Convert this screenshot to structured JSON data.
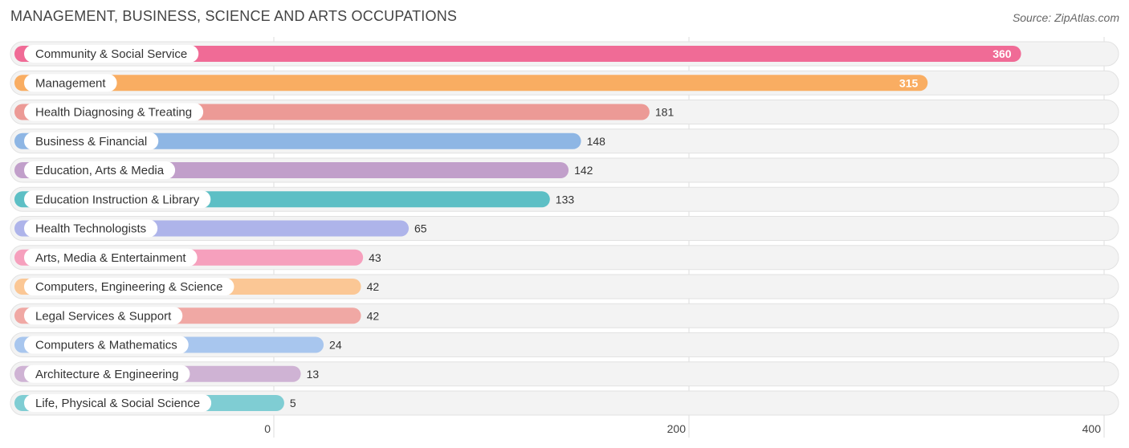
{
  "chart_data": {
    "type": "bar",
    "orientation": "horizontal",
    "title": "MANAGEMENT, BUSINESS, SCIENCE AND ARTS OCCUPATIONS",
    "source": "Source: ZipAtlas.com",
    "categories": [
      "Community & Social Service",
      "Management",
      "Health Diagnosing & Treating",
      "Business & Financial",
      "Education, Arts & Media",
      "Education Instruction & Library",
      "Health Technologists",
      "Arts, Media & Entertainment",
      "Computers, Engineering & Science",
      "Legal Services & Support",
      "Computers & Mathematics",
      "Architecture & Engineering",
      "Life, Physical & Social Science"
    ],
    "values": [
      360,
      315,
      181,
      148,
      142,
      133,
      65,
      43,
      42,
      42,
      24,
      13,
      5
    ],
    "value_labels": [
      "360",
      "315",
      "181",
      "148",
      "142",
      "133",
      "65",
      "43",
      "42",
      "42",
      "24",
      "13",
      "5"
    ],
    "colors": [
      "#f06b96",
      "#f9ad62",
      "#ec9a96",
      "#8eb6e4",
      "#c19fca",
      "#5dbfc5",
      "#aeb4ea",
      "#f6a0bd",
      "#fbc795",
      "#f0a8a4",
      "#a8c6ee",
      "#cfb3d4",
      "#7fcdd3"
    ],
    "xlim": [
      0,
      400
    ],
    "x_ticks": [
      0,
      200,
      400
    ],
    "x_tick_labels": [
      "0",
      "200",
      "400"
    ],
    "grid": true
  }
}
